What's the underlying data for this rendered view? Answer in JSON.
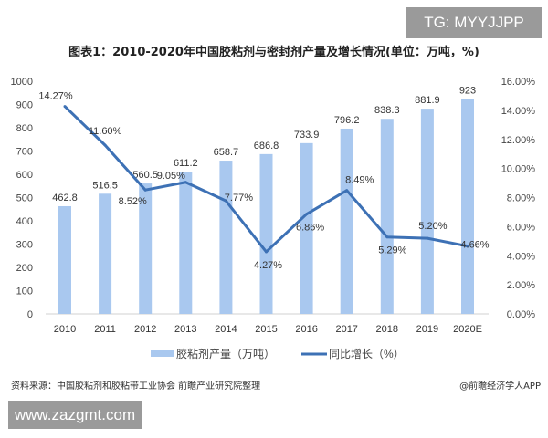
{
  "watermark_top": "TG: MYYJJPP",
  "watermark_bottom": "www.zazgmt.com",
  "source": "资料来源：中国胶粘剂和胶粘带工业协会 前瞻产业研究院整理",
  "credit": "@前瞻经济学人APP",
  "chart_data": {
    "type": "bar+line",
    "title": "图表1：2010-2020年中国胶粘剂与密封剂产量及增长情况(单位：万吨，%)",
    "categories": [
      "2010",
      "2011",
      "2012",
      "2013",
      "2014",
      "2015",
      "2016",
      "2017",
      "2018",
      "2019",
      "2020E"
    ],
    "series": [
      {
        "name": "胶粘剂产量（万吨）",
        "type": "bar",
        "axis": "left",
        "color": "#a9c8ef",
        "values": [
          462.8,
          516.5,
          560.5,
          611.2,
          658.7,
          686.8,
          733.9,
          796.2,
          838.3,
          881.9,
          923
        ]
      },
      {
        "name": "同比增长（%）",
        "type": "line",
        "axis": "right",
        "color": "#3d71b5",
        "values": [
          14.27,
          11.6,
          8.52,
          9.05,
          7.77,
          4.27,
          6.86,
          8.49,
          5.29,
          5.2,
          4.66
        ]
      }
    ],
    "left_axis": {
      "ylim": [
        0,
        1000
      ],
      "ticks": [
        "0",
        "100",
        "200",
        "300",
        "400",
        "500",
        "600",
        "700",
        "800",
        "900",
        "1000"
      ]
    },
    "right_axis": {
      "ylim": [
        0,
        16
      ],
      "ticks": [
        "0.00%",
        "2.00%",
        "4.00%",
        "6.00%",
        "8.00%",
        "10.00%",
        "12.00%",
        "14.00%",
        "16.00%"
      ]
    },
    "bar_labels": [
      "462.8",
      "516.5",
      "560.5",
      "611.2",
      "658.7",
      "686.8",
      "733.9",
      "796.2",
      "838.3",
      "881.9",
      "923"
    ],
    "line_labels": [
      "14.27%",
      "11.60%",
      "8.52%",
      "9.05%",
      "7.77%",
      "4.27%",
      "6.86%",
      "8.49%",
      "5.29%",
      "5.20%",
      "4.66%"
    ],
    "legend_position": "bottom",
    "grid": false
  }
}
